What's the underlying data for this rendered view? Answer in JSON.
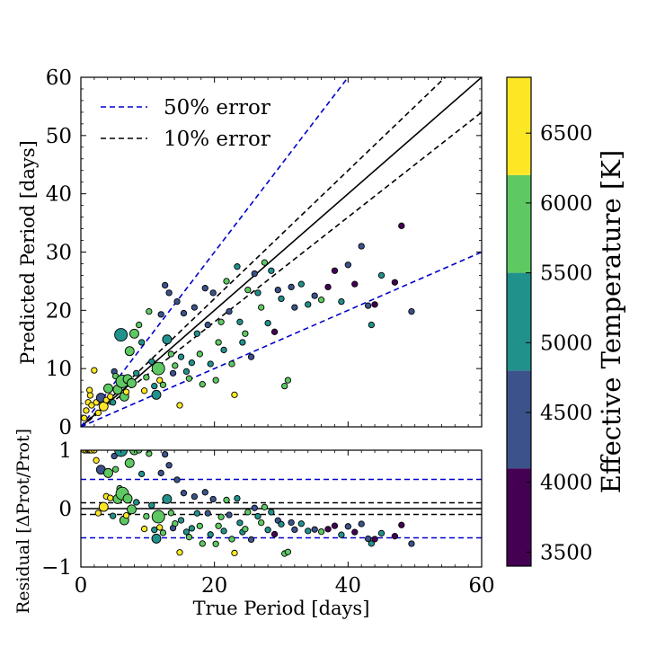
{
  "chart_data": [
    {
      "type": "scatter",
      "name": "main-panel",
      "xlabel": "",
      "ylabel": "Predicted Period [days]",
      "xlim": [
        0,
        60
      ],
      "ylim": [
        0,
        60
      ],
      "x_ticks": [
        "0",
        "20",
        "40",
        "60"
      ],
      "y_ticks": [
        "0",
        "10",
        "20",
        "30",
        "40",
        "50",
        "60"
      ],
      "legend": {
        "placement": "top-left",
        "entries": [
          {
            "label": "50% error",
            "color": "#0000cc",
            "style": "dashed"
          },
          {
            "label": "10% error",
            "color": "#000000",
            "style": "dashed"
          }
        ]
      },
      "reference_lines": [
        {
          "name": "one-to-one",
          "slope": 1.0,
          "color": "#000000",
          "style": "solid"
        },
        {
          "name": "plus-10pct",
          "slope": 1.1,
          "color": "#000000",
          "style": "dashed"
        },
        {
          "name": "minus-10pct",
          "slope": 0.9,
          "color": "#000000",
          "style": "dashed"
        },
        {
          "name": "plus-50pct",
          "slope": 1.5,
          "color": "#0000cc",
          "style": "dashed"
        },
        {
          "name": "minus-50pct",
          "slope": 0.5,
          "color": "#0000cc",
          "style": "dashed"
        }
      ],
      "points": [
        {
          "x": 0.5,
          "y": 1.5,
          "teff": 6400,
          "s": 1
        },
        {
          "x": 0.8,
          "y": 2.8,
          "teff": 6400,
          "s": 1
        },
        {
          "x": 1.1,
          "y": 4.2,
          "teff": 6400,
          "s": 1
        },
        {
          "x": 1.3,
          "y": 6.3,
          "teff": 6400,
          "s": 1
        },
        {
          "x": 1.4,
          "y": 5.4,
          "teff": 6400,
          "s": 1
        },
        {
          "x": 1.6,
          "y": 3.7,
          "teff": 6400,
          "s": 1
        },
        {
          "x": 2.0,
          "y": 9.7,
          "teff": 6400,
          "s": 1
        },
        {
          "x": 2.3,
          "y": 4.2,
          "teff": 6400,
          "s": 1
        },
        {
          "x": 2.6,
          "y": 2.4,
          "teff": 6400,
          "s": 1
        },
        {
          "x": 3.0,
          "y": 5.0,
          "teff": 4600,
          "s": 2
        },
        {
          "x": 3.4,
          "y": 3.5,
          "teff": 6400,
          "s": 2
        },
        {
          "x": 3.8,
          "y": 4.6,
          "teff": 6400,
          "s": 1
        },
        {
          "x": 4.1,
          "y": 6.6,
          "teff": 5800,
          "s": 2
        },
        {
          "x": 4.4,
          "y": 5.2,
          "teff": 6400,
          "s": 1
        },
        {
          "x": 4.8,
          "y": 4.2,
          "teff": 5200,
          "s": 1
        },
        {
          "x": 5.0,
          "y": 9.5,
          "teff": 4400,
          "s": 1
        },
        {
          "x": 5.2,
          "y": 8.7,
          "teff": 5800,
          "s": 1
        },
        {
          "x": 5.5,
          "y": 6.4,
          "teff": 5800,
          "s": 2
        },
        {
          "x": 5.8,
          "y": 7.8,
          "teff": 5800,
          "s": 1
        },
        {
          "x": 6.0,
          "y": 15.8,
          "teff": 5200,
          "s": 3
        },
        {
          "x": 6.2,
          "y": 7.8,
          "teff": 5800,
          "s": 3
        },
        {
          "x": 6.5,
          "y": 5.2,
          "teff": 5800,
          "s": 2
        },
        {
          "x": 6.8,
          "y": 6.0,
          "teff": 6400,
          "s": 1
        },
        {
          "x": 7.0,
          "y": 8.2,
          "teff": 5800,
          "s": 2
        },
        {
          "x": 7.3,
          "y": 13.0,
          "teff": 5800,
          "s": 2
        },
        {
          "x": 7.6,
          "y": 7.5,
          "teff": 5800,
          "s": 2
        },
        {
          "x": 8.0,
          "y": 16.0,
          "teff": 5800,
          "s": 2
        },
        {
          "x": 8.3,
          "y": 9.2,
          "teff": 5200,
          "s": 1
        },
        {
          "x": 8.7,
          "y": 17.5,
          "teff": 5800,
          "s": 1
        },
        {
          "x": 9.1,
          "y": 14.5,
          "teff": 5200,
          "s": 1
        },
        {
          "x": 9.5,
          "y": 6.2,
          "teff": 6400,
          "s": 1
        },
        {
          "x": 9.8,
          "y": 8.5,
          "teff": 5800,
          "s": 1
        },
        {
          "x": 10.2,
          "y": 19.8,
          "teff": 5800,
          "s": 1
        },
        {
          "x": 10.6,
          "y": 11.2,
          "teff": 5200,
          "s": 1
        },
        {
          "x": 11.0,
          "y": 7.0,
          "teff": 5200,
          "s": 1
        },
        {
          "x": 11.3,
          "y": 5.5,
          "teff": 4800,
          "s": 2
        },
        {
          "x": 11.6,
          "y": 10.0,
          "teff": 5800,
          "s": 3
        },
        {
          "x": 11.8,
          "y": 8.0,
          "teff": 6400,
          "s": 1
        },
        {
          "x": 12.0,
          "y": 19.3,
          "teff": 4600,
          "s": 1
        },
        {
          "x": 12.3,
          "y": 7.2,
          "teff": 5800,
          "s": 1
        },
        {
          "x": 12.6,
          "y": 24.3,
          "teff": 4400,
          "s": 1
        },
        {
          "x": 12.9,
          "y": 15.0,
          "teff": 5200,
          "s": 2
        },
        {
          "x": 13.2,
          "y": 23.0,
          "teff": 4600,
          "s": 1
        },
        {
          "x": 13.5,
          "y": 12.5,
          "teff": 5800,
          "s": 1
        },
        {
          "x": 13.8,
          "y": 9.2,
          "teff": 4200,
          "s": 1
        },
        {
          "x": 14.1,
          "y": 10.5,
          "teff": 5800,
          "s": 1
        },
        {
          "x": 14.4,
          "y": 21.5,
          "teff": 4600,
          "s": 1
        },
        {
          "x": 14.8,
          "y": 3.7,
          "teff": 6400,
          "s": 1
        },
        {
          "x": 15.0,
          "y": 12.0,
          "teff": 5200,
          "s": 1
        },
        {
          "x": 15.4,
          "y": 19.5,
          "teff": 4400,
          "s": 1
        },
        {
          "x": 15.8,
          "y": 9.5,
          "teff": 5200,
          "s": 1
        },
        {
          "x": 16.2,
          "y": 8.3,
          "teff": 5800,
          "s": 1
        },
        {
          "x": 16.6,
          "y": 11.0,
          "teff": 5200,
          "s": 1
        },
        {
          "x": 17.0,
          "y": 20.5,
          "teff": 4400,
          "s": 1
        },
        {
          "x": 17.4,
          "y": 16.0,
          "teff": 5200,
          "s": 1
        },
        {
          "x": 17.8,
          "y": 12.5,
          "teff": 5800,
          "s": 1
        },
        {
          "x": 18.2,
          "y": 7.3,
          "teff": 5800,
          "s": 1
        },
        {
          "x": 18.6,
          "y": 23.8,
          "teff": 4200,
          "s": 1
        },
        {
          "x": 19.0,
          "y": 17.5,
          "teff": 4600,
          "s": 1
        },
        {
          "x": 19.4,
          "y": 10.8,
          "teff": 5200,
          "s": 1
        },
        {
          "x": 19.8,
          "y": 23.0,
          "teff": 4400,
          "s": 1
        },
        {
          "x": 20.2,
          "y": 8.0,
          "teff": 5800,
          "s": 1
        },
        {
          "x": 20.6,
          "y": 14.5,
          "teff": 5800,
          "s": 1
        },
        {
          "x": 21.0,
          "y": 18.0,
          "teff": 5800,
          "s": 1
        },
        {
          "x": 21.4,
          "y": 13.2,
          "teff": 5200,
          "s": 1
        },
        {
          "x": 21.8,
          "y": 25.0,
          "teff": 5800,
          "s": 1
        },
        {
          "x": 22.2,
          "y": 19.8,
          "teff": 4400,
          "s": 1
        },
        {
          "x": 22.6,
          "y": 10.8,
          "teff": 5800,
          "s": 1
        },
        {
          "x": 23.0,
          "y": 5.5,
          "teff": 6400,
          "s": 1
        },
        {
          "x": 23.4,
          "y": 27.5,
          "teff": 5200,
          "s": 1
        },
        {
          "x": 23.8,
          "y": 18.0,
          "teff": 5200,
          "s": 1
        },
        {
          "x": 24.2,
          "y": 14.5,
          "teff": 5200,
          "s": 1
        },
        {
          "x": 24.6,
          "y": 16.0,
          "teff": 5800,
          "s": 1
        },
        {
          "x": 25.0,
          "y": 23.5,
          "teff": 5800,
          "s": 1
        },
        {
          "x": 25.5,
          "y": 12.0,
          "teff": 4600,
          "s": 1
        },
        {
          "x": 26.0,
          "y": 26.3,
          "teff": 4200,
          "s": 1
        },
        {
          "x": 26.5,
          "y": 23.0,
          "teff": 4800,
          "s": 1
        },
        {
          "x": 27.0,
          "y": 20.5,
          "teff": 5800,
          "s": 1
        },
        {
          "x": 27.5,
          "y": 28.2,
          "teff": 5800,
          "s": 1
        },
        {
          "x": 28.0,
          "y": 17.8,
          "teff": 5200,
          "s": 1
        },
        {
          "x": 28.5,
          "y": 26.8,
          "teff": 4800,
          "s": 1
        },
        {
          "x": 29.0,
          "y": 16.3,
          "teff": 3600,
          "s": 1
        },
        {
          "x": 29.5,
          "y": 23.5,
          "teff": 4400,
          "s": 1
        },
        {
          "x": 30.0,
          "y": 22.0,
          "teff": 5200,
          "s": 1
        },
        {
          "x": 30.5,
          "y": 7.0,
          "teff": 5800,
          "s": 1
        },
        {
          "x": 31.0,
          "y": 8.0,
          "teff": 5800,
          "s": 1
        },
        {
          "x": 31.5,
          "y": 24.0,
          "teff": 4400,
          "s": 1
        },
        {
          "x": 32.0,
          "y": 20.5,
          "teff": 4600,
          "s": 1
        },
        {
          "x": 33.0,
          "y": 24.5,
          "teff": 5200,
          "s": 1
        },
        {
          "x": 34.0,
          "y": 21.0,
          "teff": 5200,
          "s": 1
        },
        {
          "x": 35.0,
          "y": 22.5,
          "teff": 4200,
          "s": 1
        },
        {
          "x": 36.0,
          "y": 21.8,
          "teff": 5800,
          "s": 1
        },
        {
          "x": 37.0,
          "y": 24.0,
          "teff": 3600,
          "s": 1
        },
        {
          "x": 38.0,
          "y": 26.8,
          "teff": 3600,
          "s": 1
        },
        {
          "x": 39.0,
          "y": 21.5,
          "teff": 5200,
          "s": 1
        },
        {
          "x": 40.0,
          "y": 27.8,
          "teff": 4600,
          "s": 1
        },
        {
          "x": 41.0,
          "y": 24.5,
          "teff": 3600,
          "s": 1
        },
        {
          "x": 42.0,
          "y": 31.0,
          "teff": 4400,
          "s": 1
        },
        {
          "x": 43.0,
          "y": 20.8,
          "teff": 4200,
          "s": 1
        },
        {
          "x": 43.5,
          "y": 17.5,
          "teff": 5200,
          "s": 1
        },
        {
          "x": 44.0,
          "y": 21.0,
          "teff": 3600,
          "s": 1
        },
        {
          "x": 45.0,
          "y": 26.0,
          "teff": 5200,
          "s": 1
        },
        {
          "x": 47.0,
          "y": 24.8,
          "teff": 3600,
          "s": 1
        },
        {
          "x": 48.0,
          "y": 34.5,
          "teff": 3600,
          "s": 1
        },
        {
          "x": 49.5,
          "y": 19.8,
          "teff": 4400,
          "s": 1
        }
      ]
    },
    {
      "type": "scatter",
      "name": "residual-panel",
      "xlabel": "True Period [days]",
      "ylabel": "Residual [ΔProt/Prot]",
      "xlim": [
        0,
        60
      ],
      "ylim": [
        -1,
        1
      ],
      "x_ticks": [
        "0",
        "20",
        "40",
        "60"
      ],
      "y_ticks": [
        "−1",
        "0",
        "1"
      ],
      "reference_lines": [
        {
          "name": "zero",
          "y": 0.0,
          "color": "#000000",
          "style": "solid"
        },
        {
          "name": "plus-10pct",
          "y": 0.1,
          "color": "#000000",
          "style": "dashed"
        },
        {
          "name": "minus-10pct",
          "y": -0.1,
          "color": "#000000",
          "style": "dashed"
        },
        {
          "name": "plus-50pct",
          "y": 0.5,
          "color": "#0000cc",
          "style": "dashed"
        },
        {
          "name": "minus-50pct",
          "y": -0.5,
          "color": "#0000cc",
          "style": "dashed"
        }
      ],
      "derived_from": "main-panel points: residual = (y - x) / x, clipped to axis range"
    }
  ],
  "colorbar": {
    "label": "Effective Temperature [K]",
    "tick_labels": [
      "3500",
      "4000",
      "4500",
      "5000",
      "5500",
      "6000",
      "6500"
    ],
    "range": [
      3400,
      6900
    ],
    "bins": [
      {
        "from": 3400,
        "to": 4100,
        "color": "#440154"
      },
      {
        "from": 4100,
        "to": 4800,
        "color": "#3b528b"
      },
      {
        "from": 4800,
        "to": 5500,
        "color": "#21918c"
      },
      {
        "from": 5500,
        "to": 6200,
        "color": "#5ec962"
      },
      {
        "from": 6200,
        "to": 6900,
        "color": "#fde725"
      }
    ]
  }
}
